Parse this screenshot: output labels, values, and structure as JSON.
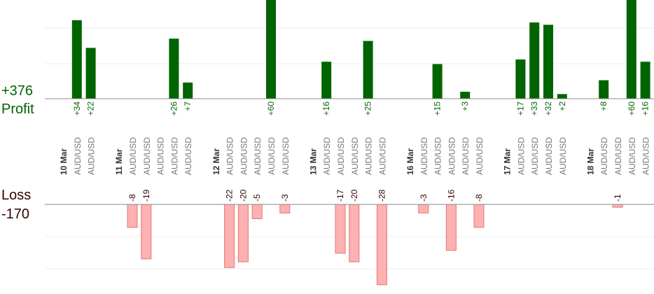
{
  "summary": {
    "profit_total": "+376",
    "profit_label": "Profit",
    "loss_label": "Loss",
    "loss_total": "-170"
  },
  "colors": {
    "profit": "#006400",
    "loss": "#ffb0b0",
    "loss_border": "#e07878",
    "axis": "#888888",
    "grid": "#eeeeee",
    "date_text": "#333333",
    "symbol_text": "#777777",
    "loss_text": "#330000"
  },
  "chart_data": {
    "type": "bar",
    "title": "",
    "columns": [
      {
        "date": "10 Mar",
        "symbol": "",
        "value": null
      },
      {
        "date": "",
        "symbol": "AUD/USD",
        "value": 34
      },
      {
        "date": "",
        "symbol": "AUD/USD",
        "value": 22
      },
      {
        "date": "",
        "symbol": "",
        "value": null
      },
      {
        "date": "11 Mar",
        "symbol": "",
        "value": null
      },
      {
        "date": "",
        "symbol": "AUD/USD",
        "value": -8
      },
      {
        "date": "",
        "symbol": "AUD/USD",
        "value": -19
      },
      {
        "date": "",
        "symbol": "AUD/USD",
        "value": null
      },
      {
        "date": "",
        "symbol": "AUD/USD",
        "value": 26
      },
      {
        "date": "",
        "symbol": "AUD/USD",
        "value": 7
      },
      {
        "date": "",
        "symbol": "",
        "value": null
      },
      {
        "date": "12 Mar",
        "symbol": "",
        "value": null
      },
      {
        "date": "",
        "symbol": "AUD/USD",
        "value": -22
      },
      {
        "date": "",
        "symbol": "AUD/USD",
        "value": -20
      },
      {
        "date": "",
        "symbol": "AUD/USD",
        "value": -5
      },
      {
        "date": "",
        "symbol": "AUD/USD",
        "value": 60
      },
      {
        "date": "",
        "symbol": "AUD/USD",
        "value": -3
      },
      {
        "date": "",
        "symbol": "",
        "value": null
      },
      {
        "date": "13 Mar",
        "symbol": "",
        "value": null
      },
      {
        "date": "",
        "symbol": "AUD/USD",
        "value": 16
      },
      {
        "date": "",
        "symbol": "AUD/USD",
        "value": -17
      },
      {
        "date": "",
        "symbol": "AUD/USD",
        "value": -20
      },
      {
        "date": "",
        "symbol": "AUD/USD",
        "value": 25
      },
      {
        "date": "",
        "symbol": "AUD/USD",
        "value": -28
      },
      {
        "date": "",
        "symbol": "",
        "value": null
      },
      {
        "date": "16 Mar",
        "symbol": "",
        "value": null
      },
      {
        "date": "",
        "symbol": "AUD/USD",
        "value": -3
      },
      {
        "date": "",
        "symbol": "AUD/USD",
        "value": 15
      },
      {
        "date": "",
        "symbol": "AUD/USD",
        "value": -16
      },
      {
        "date": "",
        "symbol": "AUD/USD",
        "value": 3
      },
      {
        "date": "",
        "symbol": "AUD/USD",
        "value": -8
      },
      {
        "date": "",
        "symbol": "",
        "value": null
      },
      {
        "date": "17 Mar",
        "symbol": "",
        "value": null
      },
      {
        "date": "",
        "symbol": "AUD/USD",
        "value": 17
      },
      {
        "date": "",
        "symbol": "AUD/USD",
        "value": 33
      },
      {
        "date": "",
        "symbol": "AUD/USD",
        "value": 32
      },
      {
        "date": "",
        "symbol": "AUD/USD",
        "value": 2
      },
      {
        "date": "",
        "symbol": "",
        "value": null
      },
      {
        "date": "18 Mar",
        "symbol": "",
        "value": null
      },
      {
        "date": "",
        "symbol": "AUD/USD",
        "value": 8
      },
      {
        "date": "",
        "symbol": "AUD/USD",
        "value": -1
      },
      {
        "date": "",
        "symbol": "AUD/USD",
        "value": 60
      },
      {
        "date": "",
        "symbol": "AUD/USD",
        "value": 16
      }
    ],
    "value_labels_signed": true,
    "profit_axis_visible_max": 30,
    "loss_axis_visible_min": -25,
    "grid": true
  }
}
